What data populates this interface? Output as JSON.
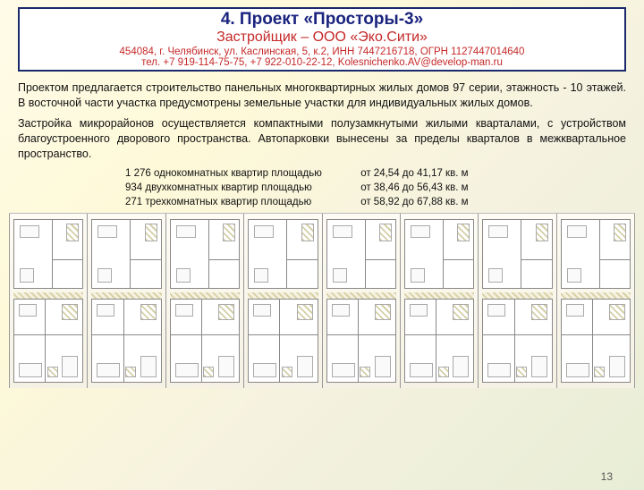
{
  "header": {
    "title": "4. Проект «Просторы-3»",
    "subtitle": "Застройщик – ООО «Эко.Сити»",
    "address": "454084, г. Челябинск, ул. Каслинская, 5, к.2, ИНН 7447216718, ОГРН 1127447014640",
    "contact": "тел. +7 919-114-75-75, +7 922-010-22-12,  Kolesnichenko.AV@develop-man.ru"
  },
  "paragraphs": [
    "Проектом предлагается строительство панельных многоквартирных жилых домов 97 серии, этажность - 10 этажей. В восточной части участка предусмотрены земельные участки для индивидуальных жилых домов.",
    "Застройка микрорайонов осуществляется компактными полузамкнутыми жилыми кварталами, с устройством благоустроенного дворового пространства. Автопарковки вынесены за пределы кварталов в межквартальное пространство."
  ],
  "stats": [
    {
      "label": "1 276 однокомнатных квартир площадью",
      "value": "от 24,54 до 41,17 кв. м"
    },
    {
      "label": "934 двухкомнатных квартир площадью",
      "value": "от 38,46 до 56,43 кв. м"
    },
    {
      "label": "271 трехкомнатных квартир площадью",
      "value": "от 58,92 до 67,88 кв. м"
    }
  ],
  "floorplan": {
    "units": 8,
    "colors": {
      "wall": "#888888",
      "background": "#f8f6ef",
      "room_fill": "#ffffff",
      "hatch_a": "#d4cfa8",
      "hatch_b": "#ffffff"
    }
  },
  "page_number": "13"
}
